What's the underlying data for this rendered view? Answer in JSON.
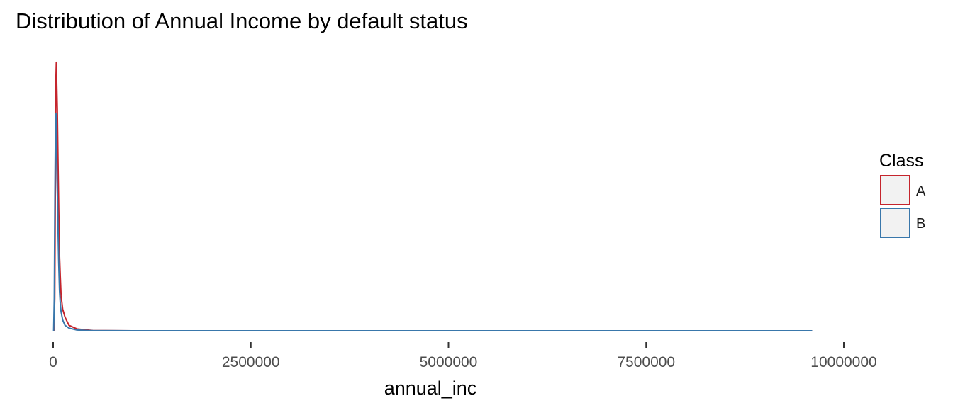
{
  "chart_data": {
    "type": "line",
    "subtype": "density",
    "title": "Distribution of Annual Income by default status",
    "xlabel": "annual_inc",
    "ylabel": "",
    "xlim": [
      0,
      10000000
    ],
    "ylim": [
      0,
      1
    ],
    "x_ticks": [
      0,
      2500000,
      5000000,
      7500000,
      10000000
    ],
    "x_tick_labels": [
      "0",
      "2500000",
      "5000000",
      "7500000",
      "10000000"
    ],
    "y_axis_shown": false,
    "grid": false,
    "legend": {
      "title": "Class",
      "position": "right"
    },
    "series": [
      {
        "name": "A",
        "color": "#c5252d",
        "points": [
          [
            0,
            0
          ],
          [
            10000,
            0.0
          ],
          [
            20000,
            0.12
          ],
          [
            28000,
            0.55
          ],
          [
            35000,
            0.93
          ],
          [
            40000,
            0.99
          ],
          [
            46000,
            0.9
          ],
          [
            52000,
            0.82
          ],
          [
            60000,
            0.65
          ],
          [
            70000,
            0.45
          ],
          [
            80000,
            0.28
          ],
          [
            90000,
            0.2
          ],
          [
            100000,
            0.13
          ],
          [
            120000,
            0.08
          ],
          [
            150000,
            0.05
          ],
          [
            200000,
            0.02
          ],
          [
            300000,
            0.007
          ],
          [
            500000,
            0.001
          ],
          [
            1000000,
            0.0
          ],
          [
            9600000,
            0.0
          ]
        ]
      },
      {
        "name": "B",
        "color": "#3977ab",
        "points": [
          [
            0,
            0
          ],
          [
            6000,
            0.0
          ],
          [
            14000,
            0.12
          ],
          [
            22000,
            0.5
          ],
          [
            30000,
            0.78
          ],
          [
            36000,
            0.8
          ],
          [
            42000,
            0.68
          ],
          [
            50000,
            0.55
          ],
          [
            60000,
            0.4
          ],
          [
            70000,
            0.25
          ],
          [
            80000,
            0.15
          ],
          [
            90000,
            0.1
          ],
          [
            100000,
            0.07
          ],
          [
            120000,
            0.04
          ],
          [
            150000,
            0.02
          ],
          [
            200000,
            0.01
          ],
          [
            300000,
            0.003
          ],
          [
            500000,
            0.0005
          ],
          [
            1000000,
            0.0
          ],
          [
            9600000,
            0.0
          ]
        ]
      }
    ]
  }
}
